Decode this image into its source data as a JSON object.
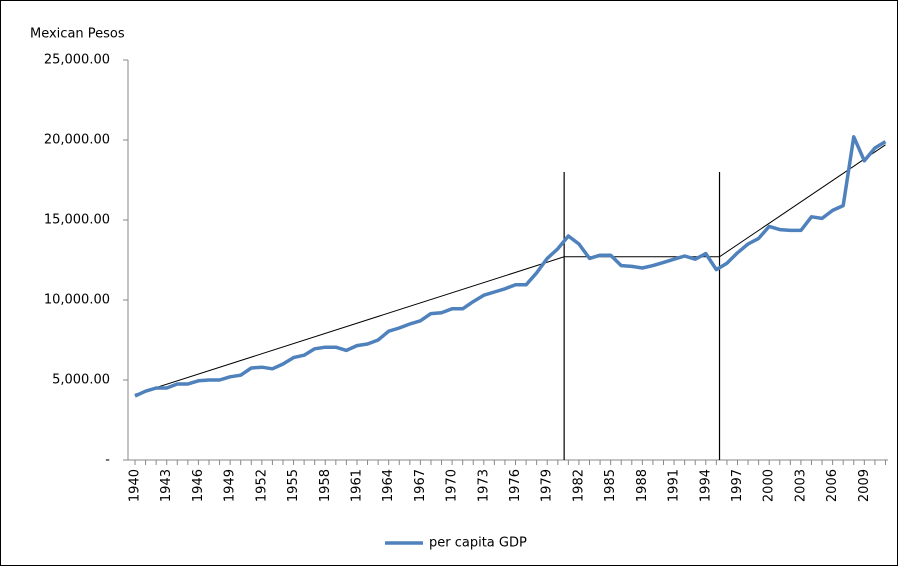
{
  "chart_data": {
    "type": "line",
    "y_axis_label": "Mexican Pesos",
    "categories": [
      "1940",
      null,
      null,
      "1943",
      null,
      null,
      "1946",
      null,
      null,
      "1949",
      null,
      null,
      "1952",
      null,
      null,
      "1955",
      null,
      null,
      "1958",
      null,
      null,
      "1961",
      null,
      null,
      "1964",
      null,
      null,
      "1967",
      null,
      null,
      "1970",
      null,
      null,
      "1973",
      null,
      null,
      "1976",
      null,
      null,
      "1979",
      null,
      null,
      "1982",
      null,
      null,
      "1985",
      null,
      null,
      "1988",
      null,
      null,
      "1991",
      null,
      null,
      "1994",
      null,
      null,
      "1997",
      null,
      null,
      "2000",
      null,
      null,
      "2003",
      null,
      null,
      "2006",
      null,
      null,
      "2009",
      null,
      null
    ],
    "series": [
      {
        "name": "per capita GDP",
        "color": "#4f81bd",
        "values": [
          4000,
          4300,
          4500,
          4500,
          4750,
          4750,
          4950,
          5000,
          5000,
          5200,
          5300,
          5750,
          5800,
          5700,
          6000,
          6400,
          6550,
          6950,
          7050,
          7050,
          6850,
          7150,
          7250,
          7500,
          8050,
          8250,
          8500,
          8700,
          9150,
          9200,
          9450,
          9450,
          9900,
          10300,
          10500,
          10700,
          10950,
          10950,
          11700,
          12600,
          13200,
          14000,
          13500,
          12600,
          12800,
          12800,
          12150,
          12100,
          12000,
          12150,
          12350,
          12550,
          12750,
          12550,
          12900,
          11900,
          12300,
          12950,
          13500,
          13850,
          14600,
          14400,
          14350,
          14350,
          15200,
          15100,
          15600,
          15900,
          20200,
          18700,
          19500,
          19900
        ]
      }
    ],
    "trend": {
      "x": [
        1940,
        1980.6,
        1995.3,
        2011
      ],
      "values": [
        4100,
        12700,
        12700,
        19700
      ],
      "color": "#000000"
    },
    "breaks": [
      1980.6,
      1995.3
    ],
    "x_start": 1940,
    "ylim": [
      0,
      25000
    ],
    "yticks": [
      {
        "value": 0,
        "label": "-"
      },
      {
        "value": 5000,
        "label": "5,000.00"
      },
      {
        "value": 10000,
        "label": "10,000.00"
      },
      {
        "value": 15000,
        "label": "15,000.00"
      },
      {
        "value": 20000,
        "label": "20,000.00"
      },
      {
        "value": 25000,
        "label": "25,000.00"
      }
    ],
    "legend": "bottom"
  }
}
